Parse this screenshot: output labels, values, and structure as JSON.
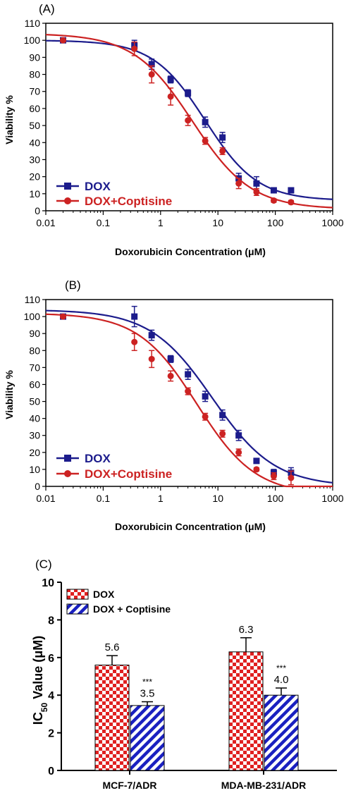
{
  "colors": {
    "dox_curve": "#1c1c8c",
    "combo_curve": "#cc2222",
    "bar_red": "#e02020",
    "bar_blue": "#1a20c0"
  },
  "chart_data": [
    {
      "type": "scatter",
      "panel_label": "(A)",
      "xlabel": "Doxorubicin Concentration (μM)",
      "ylabel": "Viability %",
      "x_scale": "log",
      "xlim": [
        0.01,
        1000
      ],
      "ylim": [
        0,
        110
      ],
      "xticks": [
        "0.01",
        "0.1",
        "1",
        "10",
        "100",
        "1000"
      ],
      "yticks": [
        "0",
        "10",
        "20",
        "30",
        "40",
        "50",
        "60",
        "70",
        "80",
        "90",
        "100",
        "110"
      ],
      "legend": "bottom-left",
      "series": [
        {
          "name": "DOX",
          "marker": "square",
          "fit": {
            "top": 100,
            "bottom": 6,
            "ic50": 6.0,
            "hill": 0.95
          },
          "points": [
            {
              "x": 0.02,
              "y": 100,
              "err": 1
            },
            {
              "x": 0.35,
              "y": 97,
              "err": 3
            },
            {
              "x": 0.7,
              "y": 86,
              "err": 3
            },
            {
              "x": 1.5,
              "y": 77,
              "err": 2
            },
            {
              "x": 3,
              "y": 69,
              "err": 2
            },
            {
              "x": 6,
              "y": 52,
              "err": 3
            },
            {
              "x": 12,
              "y": 43,
              "err": 3
            },
            {
              "x": 23,
              "y": 19,
              "err": 3
            },
            {
              "x": 47,
              "y": 16,
              "err": 4
            },
            {
              "x": 94,
              "y": 12,
              "err": 1
            },
            {
              "x": 188,
              "y": 12,
              "err": 1
            }
          ]
        },
        {
          "name": "DOX+Coptisine",
          "marker": "circle",
          "fit": {
            "top": 104,
            "bottom": 1,
            "ic50": 3.6,
            "hill": 0.85
          },
          "points": [
            {
              "x": 0.02,
              "y": 100,
              "err": 1
            },
            {
              "x": 0.35,
              "y": 95,
              "err": 4
            },
            {
              "x": 0.7,
              "y": 80,
              "err": 5
            },
            {
              "x": 1.5,
              "y": 67,
              "err": 5
            },
            {
              "x": 3,
              "y": 53,
              "err": 3
            },
            {
              "x": 6,
              "y": 41,
              "err": 2
            },
            {
              "x": 12,
              "y": 35,
              "err": 2
            },
            {
              "x": 23,
              "y": 16,
              "err": 3
            },
            {
              "x": 47,
              "y": 11,
              "err": 2
            },
            {
              "x": 94,
              "y": 6,
              "err": 1
            },
            {
              "x": 188,
              "y": 5,
              "err": 1
            }
          ]
        }
      ]
    },
    {
      "type": "scatter",
      "panel_label": "(B)",
      "xlabel": "Doxorubicin Concentration (μM)",
      "ylabel": "Viability %",
      "x_scale": "log",
      "xlim": [
        0.01,
        1000
      ],
      "ylim": [
        0,
        110
      ],
      "xticks": [
        "0.01",
        "0.1",
        "1",
        "10",
        "100",
        "1000"
      ],
      "yticks": [
        "0",
        "10",
        "20",
        "30",
        "40",
        "50",
        "60",
        "70",
        "80",
        "90",
        "100",
        "110"
      ],
      "legend": "bottom-left",
      "series": [
        {
          "name": "DOX",
          "marker": "square",
          "fit": {
            "top": 104,
            "bottom": 0,
            "ic50": 8.0,
            "hill": 0.8
          },
          "points": [
            {
              "x": 0.02,
              "y": 100,
              "err": 1
            },
            {
              "x": 0.35,
              "y": 100,
              "err": 6
            },
            {
              "x": 0.7,
              "y": 89,
              "err": 3
            },
            {
              "x": 1.5,
              "y": 75,
              "err": 2
            },
            {
              "x": 3,
              "y": 66,
              "err": 3
            },
            {
              "x": 6,
              "y": 53,
              "err": 3
            },
            {
              "x": 12,
              "y": 42,
              "err": 3
            },
            {
              "x": 23,
              "y": 30,
              "err": 3
            },
            {
              "x": 47,
              "y": 15,
              "err": 1
            },
            {
              "x": 94,
              "y": 8,
              "err": 2
            },
            {
              "x": 188,
              "y": 8,
              "err": 3
            }
          ]
        },
        {
          "name": "DOX+Coptisine",
          "marker": "circle",
          "fit": {
            "top": 102,
            "bottom": -5,
            "ic50": 4.3,
            "hill": 0.85
          },
          "points": [
            {
              "x": 0.02,
              "y": 100,
              "err": 1
            },
            {
              "x": 0.35,
              "y": 85,
              "err": 5
            },
            {
              "x": 0.7,
              "y": 75,
              "err": 5
            },
            {
              "x": 1.5,
              "y": 65,
              "err": 3
            },
            {
              "x": 3,
              "y": 56,
              "err": 2
            },
            {
              "x": 6,
              "y": 41,
              "err": 2
            },
            {
              "x": 12,
              "y": 31,
              "err": 2
            },
            {
              "x": 23,
              "y": 20,
              "err": 2
            },
            {
              "x": 47,
              "y": 10,
              "err": 1
            },
            {
              "x": 94,
              "y": 6,
              "err": 2
            },
            {
              "x": 188,
              "y": 5,
              "err": 4
            }
          ]
        }
      ]
    },
    {
      "type": "bar",
      "panel_label": "(C)",
      "ylabel_main": "IC",
      "ylabel_sub": "50",
      "ylabel_rest": " Value (μM)",
      "ylim": [
        0,
        10
      ],
      "yticks": [
        "0",
        "2",
        "4",
        "6",
        "8",
        "10"
      ],
      "categories": [
        "MCF-7/ADR",
        "MDA-MB-231/ADR"
      ],
      "legend": "top-left",
      "series": [
        {
          "name": "DOX",
          "pattern": "checker",
          "values": [
            5.6,
            6.3
          ],
          "errors": [
            0.5,
            0.75
          ],
          "labels": [
            "5.6",
            "6.3"
          ],
          "sig": [
            "",
            ""
          ]
        },
        {
          "name": "DOX + Coptisine",
          "pattern": "stripes",
          "values": [
            3.45,
            4.0
          ],
          "errors": [
            0.2,
            0.38
          ],
          "labels": [
            "3.5",
            "4.0"
          ],
          "sig": [
            "***",
            "***"
          ]
        }
      ]
    }
  ]
}
